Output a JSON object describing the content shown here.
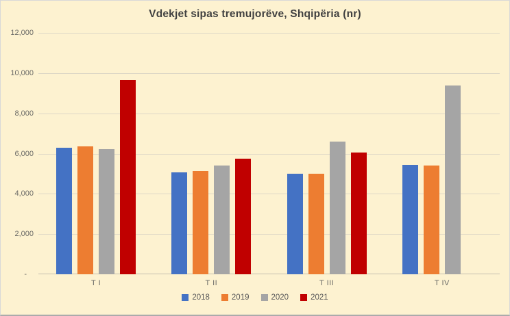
{
  "chart_data": {
    "type": "bar",
    "title": "Vdekjet sipas tremujorëve, Shqipëria (nr)",
    "categories": [
      "T I",
      "T II",
      "T III",
      "T IV"
    ],
    "series": [
      {
        "name": "2018",
        "color": "#4472C4",
        "values": [
          6300,
          5060,
          5000,
          5450
        ]
      },
      {
        "name": "2019",
        "color": "#ED7D31",
        "values": [
          6370,
          5150,
          5000,
          5390
        ]
      },
      {
        "name": "2020",
        "color": "#A5A5A5",
        "values": [
          6220,
          5400,
          6610,
          9380
        ]
      },
      {
        "name": "2021",
        "color": "#C00000",
        "values": [
          9650,
          5750,
          6050,
          null
        ]
      }
    ],
    "ylim": [
      0,
      12000
    ],
    "ytick_step": 2000,
    "ytick_labels_bottom_up": [
      "-",
      "2,000",
      "4,000",
      "6,000",
      "8,000",
      "10,000",
      "12,000"
    ],
    "grid": true,
    "legend_position": "bottom",
    "plot_background": "#FDF2D0"
  }
}
